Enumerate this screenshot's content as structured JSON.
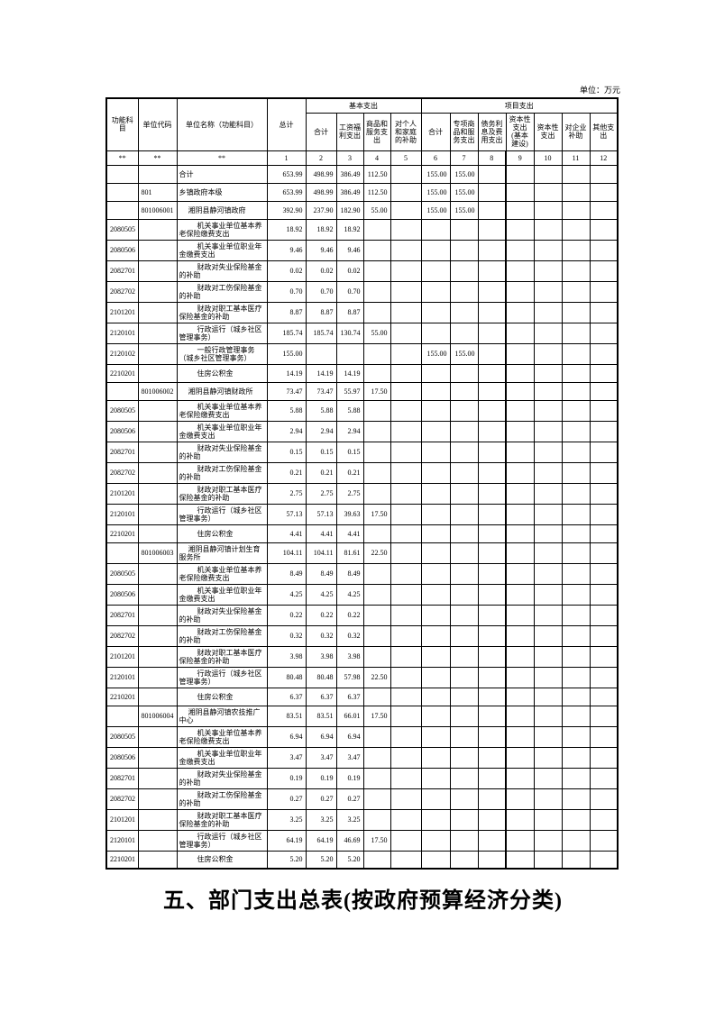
{
  "meta": {
    "unit_note": "单位：万元"
  },
  "table": {
    "head": {
      "function": "功能科目",
      "unit_code": "单位代码",
      "unit_name": "单位名称（功能科目）",
      "total": "总计",
      "basic_group": "基本支出",
      "project_group": "项目支出",
      "basic_sub": [
        "合计",
        "工资福利支出",
        "商品和服务支出",
        "对个人和家庭的补助"
      ],
      "project_sub": [
        "合计",
        "专项商品和服务支出",
        "债务利息及费用支出",
        "资本性支出(基本建设)",
        "资本性支出",
        "对企业补助",
        "其他支出"
      ]
    },
    "index_row": [
      "**",
      "**",
      "**",
      "1",
      "2",
      "3",
      "4",
      "5",
      "6",
      "7",
      "8",
      "9",
      "10",
      "11",
      "12"
    ],
    "rows": [
      {
        "code": "",
        "unit": "",
        "name": "合计",
        "indent": 0,
        "values": [
          "653.99",
          "498.99",
          "386.49",
          "112.50",
          "",
          "155.00",
          "155.00",
          "",
          "",
          "",
          "",
          ""
        ]
      },
      {
        "code": "",
        "unit": "801",
        "name": "乡镇政府本级",
        "indent": 0,
        "values": [
          "653.99",
          "498.99",
          "386.49",
          "112.50",
          "",
          "155.00",
          "155.00",
          "",
          "",
          "",
          "",
          ""
        ]
      },
      {
        "code": "",
        "unit": "801006001",
        "name": "湘阴县静河镇政府",
        "indent": 1,
        "values": [
          "392.90",
          "237.90",
          "182.90",
          "55.00",
          "",
          "155.00",
          "155.00",
          "",
          "",
          "",
          "",
          ""
        ]
      },
      {
        "code": "2080505",
        "unit": "",
        "name": "机关事业单位基本养老保险缴费支出",
        "indent": 2,
        "values": [
          "18.92",
          "18.92",
          "18.92",
          "",
          "",
          "",
          "",
          "",
          "",
          "",
          "",
          ""
        ]
      },
      {
        "code": "2080506",
        "unit": "",
        "name": "机关事业单位职业年金缴费支出",
        "indent": 2,
        "values": [
          "9.46",
          "9.46",
          "9.46",
          "",
          "",
          "",
          "",
          "",
          "",
          "",
          "",
          ""
        ]
      },
      {
        "code": "2082701",
        "unit": "",
        "name": "财政对失业保险基金的补助",
        "indent": 2,
        "values": [
          "0.02",
          "0.02",
          "0.02",
          "",
          "",
          "",
          "",
          "",
          "",
          "",
          "",
          ""
        ]
      },
      {
        "code": "2082702",
        "unit": "",
        "name": "财政对工伤保险基金的补助",
        "indent": 2,
        "values": [
          "0.70",
          "0.70",
          "0.70",
          "",
          "",
          "",
          "",
          "",
          "",
          "",
          "",
          ""
        ]
      },
      {
        "code": "2101201",
        "unit": "",
        "name": "财政对职工基本医疗保险基金的补助",
        "indent": 2,
        "values": [
          "8.87",
          "8.87",
          "8.87",
          "",
          "",
          "",
          "",
          "",
          "",
          "",
          "",
          ""
        ]
      },
      {
        "code": "2120101",
        "unit": "",
        "name": "行政运行（城乡社区管理事务）",
        "indent": 2,
        "values": [
          "185.74",
          "185.74",
          "130.74",
          "55.00",
          "",
          "",
          "",
          "",
          "",
          "",
          "",
          ""
        ]
      },
      {
        "code": "2120102",
        "unit": "",
        "name": "一般行政管理事务（城乡社区管理事务）",
        "indent": 2,
        "values": [
          "155.00",
          "",
          "",
          "",
          "",
          "155.00",
          "155.00",
          "",
          "",
          "",
          "",
          ""
        ]
      },
      {
        "code": "2210201",
        "unit": "",
        "name": "住房公积金",
        "indent": 2,
        "values": [
          "14.19",
          "14.19",
          "14.19",
          "",
          "",
          "",
          "",
          "",
          "",
          "",
          "",
          ""
        ]
      },
      {
        "code": "",
        "unit": "801006002",
        "name": "湘阴县静河镇财政所",
        "indent": 1,
        "values": [
          "73.47",
          "73.47",
          "55.97",
          "17.50",
          "",
          "",
          "",
          "",
          "",
          "",
          "",
          ""
        ]
      },
      {
        "code": "2080505",
        "unit": "",
        "name": "机关事业单位基本养老保险缴费支出",
        "indent": 2,
        "values": [
          "5.88",
          "5.88",
          "5.88",
          "",
          "",
          "",
          "",
          "",
          "",
          "",
          "",
          ""
        ]
      },
      {
        "code": "2080506",
        "unit": "",
        "name": "机关事业单位职业年金缴费支出",
        "indent": 2,
        "values": [
          "2.94",
          "2.94",
          "2.94",
          "",
          "",
          "",
          "",
          "",
          "",
          "",
          "",
          ""
        ]
      },
      {
        "code": "2082701",
        "unit": "",
        "name": "财政对失业保险基金的补助",
        "indent": 2,
        "values": [
          "0.15",
          "0.15",
          "0.15",
          "",
          "",
          "",
          "",
          "",
          "",
          "",
          "",
          ""
        ]
      },
      {
        "code": "2082702",
        "unit": "",
        "name": "财政对工伤保险基金的补助",
        "indent": 2,
        "values": [
          "0.21",
          "0.21",
          "0.21",
          "",
          "",
          "",
          "",
          "",
          "",
          "",
          "",
          ""
        ]
      },
      {
        "code": "2101201",
        "unit": "",
        "name": "财政对职工基本医疗保险基金的补助",
        "indent": 2,
        "values": [
          "2.75",
          "2.75",
          "2.75",
          "",
          "",
          "",
          "",
          "",
          "",
          "",
          "",
          ""
        ]
      },
      {
        "code": "2120101",
        "unit": "",
        "name": "行政运行（城乡社区管理事务）",
        "indent": 2,
        "values": [
          "57.13",
          "57.13",
          "39.63",
          "17.50",
          "",
          "",
          "",
          "",
          "",
          "",
          "",
          ""
        ]
      },
      {
        "code": "2210201",
        "unit": "",
        "name": "住房公积金",
        "indent": 2,
        "values": [
          "4.41",
          "4.41",
          "4.41",
          "",
          "",
          "",
          "",
          "",
          "",
          "",
          "",
          ""
        ]
      },
      {
        "code": "",
        "unit": "801006003",
        "name": "湘阴县静河镇计划生育服务所",
        "indent": 1,
        "values": [
          "104.11",
          "104.11",
          "81.61",
          "22.50",
          "",
          "",
          "",
          "",
          "",
          "",
          "",
          ""
        ]
      },
      {
        "code": "2080505",
        "unit": "",
        "name": "机关事业单位基本养老保险缴费支出",
        "indent": 2,
        "values": [
          "8.49",
          "8.49",
          "8.49",
          "",
          "",
          "",
          "",
          "",
          "",
          "",
          "",
          ""
        ]
      },
      {
        "code": "2080506",
        "unit": "",
        "name": "机关事业单位职业年金缴费支出",
        "indent": 2,
        "values": [
          "4.25",
          "4.25",
          "4.25",
          "",
          "",
          "",
          "",
          "",
          "",
          "",
          "",
          ""
        ]
      },
      {
        "code": "2082701",
        "unit": "",
        "name": "财政对失业保险基金的补助",
        "indent": 2,
        "values": [
          "0.22",
          "0.22",
          "0.22",
          "",
          "",
          "",
          "",
          "",
          "",
          "",
          "",
          ""
        ]
      },
      {
        "code": "2082702",
        "unit": "",
        "name": "财政对工伤保险基金的补助",
        "indent": 2,
        "values": [
          "0.32",
          "0.32",
          "0.32",
          "",
          "",
          "",
          "",
          "",
          "",
          "",
          "",
          ""
        ]
      },
      {
        "code": "2101201",
        "unit": "",
        "name": "财政对职工基本医疗保险基金的补助",
        "indent": 2,
        "values": [
          "3.98",
          "3.98",
          "3.98",
          "",
          "",
          "",
          "",
          "",
          "",
          "",
          "",
          ""
        ]
      },
      {
        "code": "2120101",
        "unit": "",
        "name": "行政运行（城乡社区管理事务）",
        "indent": 2,
        "values": [
          "80.48",
          "80.48",
          "57.98",
          "22.50",
          "",
          "",
          "",
          "",
          "",
          "",
          "",
          ""
        ]
      },
      {
        "code": "2210201",
        "unit": "",
        "name": "住房公积金",
        "indent": 2,
        "values": [
          "6.37",
          "6.37",
          "6.37",
          "",
          "",
          "",
          "",
          "",
          "",
          "",
          "",
          ""
        ]
      },
      {
        "code": "",
        "unit": "801006004",
        "name": "湘阴县静河镇农技推广中心",
        "indent": 1,
        "values": [
          "83.51",
          "83.51",
          "66.01",
          "17.50",
          "",
          "",
          "",
          "",
          "",
          "",
          "",
          ""
        ]
      },
      {
        "code": "2080505",
        "unit": "",
        "name": "机关事业单位基本养老保险缴费支出",
        "indent": 2,
        "values": [
          "6.94",
          "6.94",
          "6.94",
          "",
          "",
          "",
          "",
          "",
          "",
          "",
          "",
          ""
        ]
      },
      {
        "code": "2080506",
        "unit": "",
        "name": "机关事业单位职业年金缴费支出",
        "indent": 2,
        "values": [
          "3.47",
          "3.47",
          "3.47",
          "",
          "",
          "",
          "",
          "",
          "",
          "",
          "",
          ""
        ]
      },
      {
        "code": "2082701",
        "unit": "",
        "name": "财政对失业保险基金的补助",
        "indent": 2,
        "values": [
          "0.19",
          "0.19",
          "0.19",
          "",
          "",
          "",
          "",
          "",
          "",
          "",
          "",
          ""
        ]
      },
      {
        "code": "2082702",
        "unit": "",
        "name": "财政对工伤保险基金的补助",
        "indent": 2,
        "values": [
          "0.27",
          "0.27",
          "0.27",
          "",
          "",
          "",
          "",
          "",
          "",
          "",
          "",
          ""
        ]
      },
      {
        "code": "2101201",
        "unit": "",
        "name": "财政对职工基本医疗保险基金的补助",
        "indent": 2,
        "values": [
          "3.25",
          "3.25",
          "3.25",
          "",
          "",
          "",
          "",
          "",
          "",
          "",
          "",
          ""
        ]
      },
      {
        "code": "2120101",
        "unit": "",
        "name": "行政运行（城乡社区管理事务）",
        "indent": 2,
        "values": [
          "64.19",
          "64.19",
          "46.69",
          "17.50",
          "",
          "",
          "",
          "",
          "",
          "",
          "",
          ""
        ]
      },
      {
        "code": "2210201",
        "unit": "",
        "name": "住房公积金",
        "indent": 2,
        "values": [
          "5.20",
          "5.20",
          "5.20",
          "",
          "",
          "",
          "",
          "",
          "",
          "",
          "",
          ""
        ]
      }
    ]
  },
  "footer_title": "五、部门支出总表(按政府预算经济分类)"
}
